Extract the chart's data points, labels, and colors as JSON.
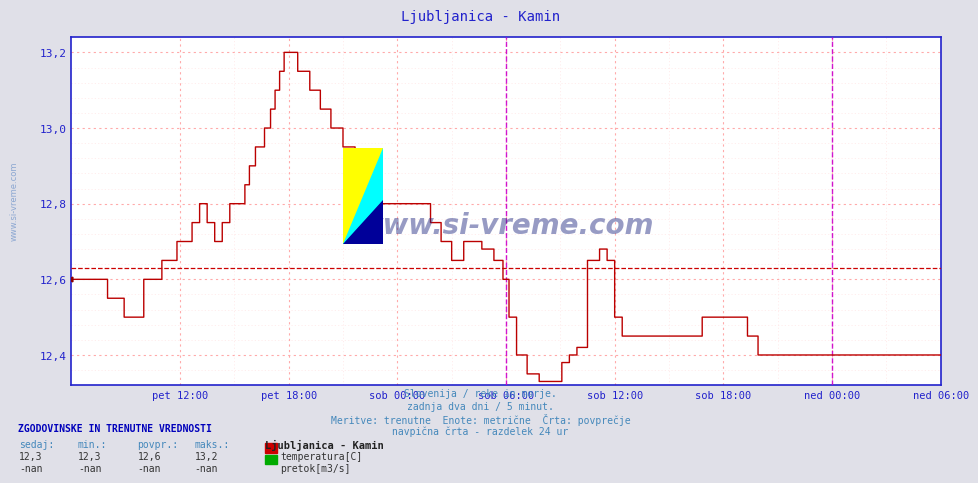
{
  "title": "Ljubljanica - Kamin",
  "title_color": "#2222cc",
  "bg_color": "#cccccc",
  "plot_bg_color": "#ffffff",
  "outer_bg_color": "#e0e0e8",
  "grid_color_major": "#ffaaaa",
  "grid_color_minor": "#ffdddd",
  "line_color": "#bb0000",
  "avg_line_color": "#cc0000",
  "avg_value": 12.63,
  "ylim": [
    12.32,
    13.24
  ],
  "ytick_vals": [
    12.4,
    12.6,
    12.8,
    13.0,
    13.2
  ],
  "ytick_labels": [
    "12,4",
    "12,6",
    "12,8",
    "13,0",
    "13,2"
  ],
  "ylabel_color": "#2222cc",
  "xlabel_color": "#2222cc",
  "axis_color": "#2222cc",
  "vline_color": "#cc00cc",
  "watermark": "www.si-vreme.com",
  "watermark_color": "#1a237e",
  "footer_lines": [
    "Slovenija / reke in morje.",
    "zadnja dva dni / 5 minut.",
    "Meritve: trenutne  Enote: metrične  Črta: povprečje",
    "navpična črta - razdelek 24 ur"
  ],
  "footer_color": "#4488bb",
  "stats_header": "ZGODOVINSKE IN TRENUTNE VREDNOSTI",
  "stats_header_color": "#0000bb",
  "stats_labels": [
    "sedaj:",
    "min.:",
    "povpr.:",
    "maks.:"
  ],
  "stats_values_temp": [
    "12,3",
    "12,3",
    "12,6",
    "13,2"
  ],
  "stats_values_flow": [
    "-nan",
    "-nan",
    "-nan",
    "-nan"
  ],
  "legend_title": "Ljubljanica - Kamin",
  "legend_temp_label": "temperatura[C]",
  "legend_flow_label": "pretok[m3/s]",
  "legend_temp_color": "#cc0000",
  "legend_flow_color": "#00aa00",
  "side_text": "www.si-vreme.com",
  "side_text_color": "#7799cc",
  "tick_labels": [
    "pet 12:00",
    "pet 18:00",
    "sob 00:00",
    "sob 06:00",
    "sob 12:00",
    "sob 18:00",
    "ned 00:00",
    "ned 06:00"
  ]
}
